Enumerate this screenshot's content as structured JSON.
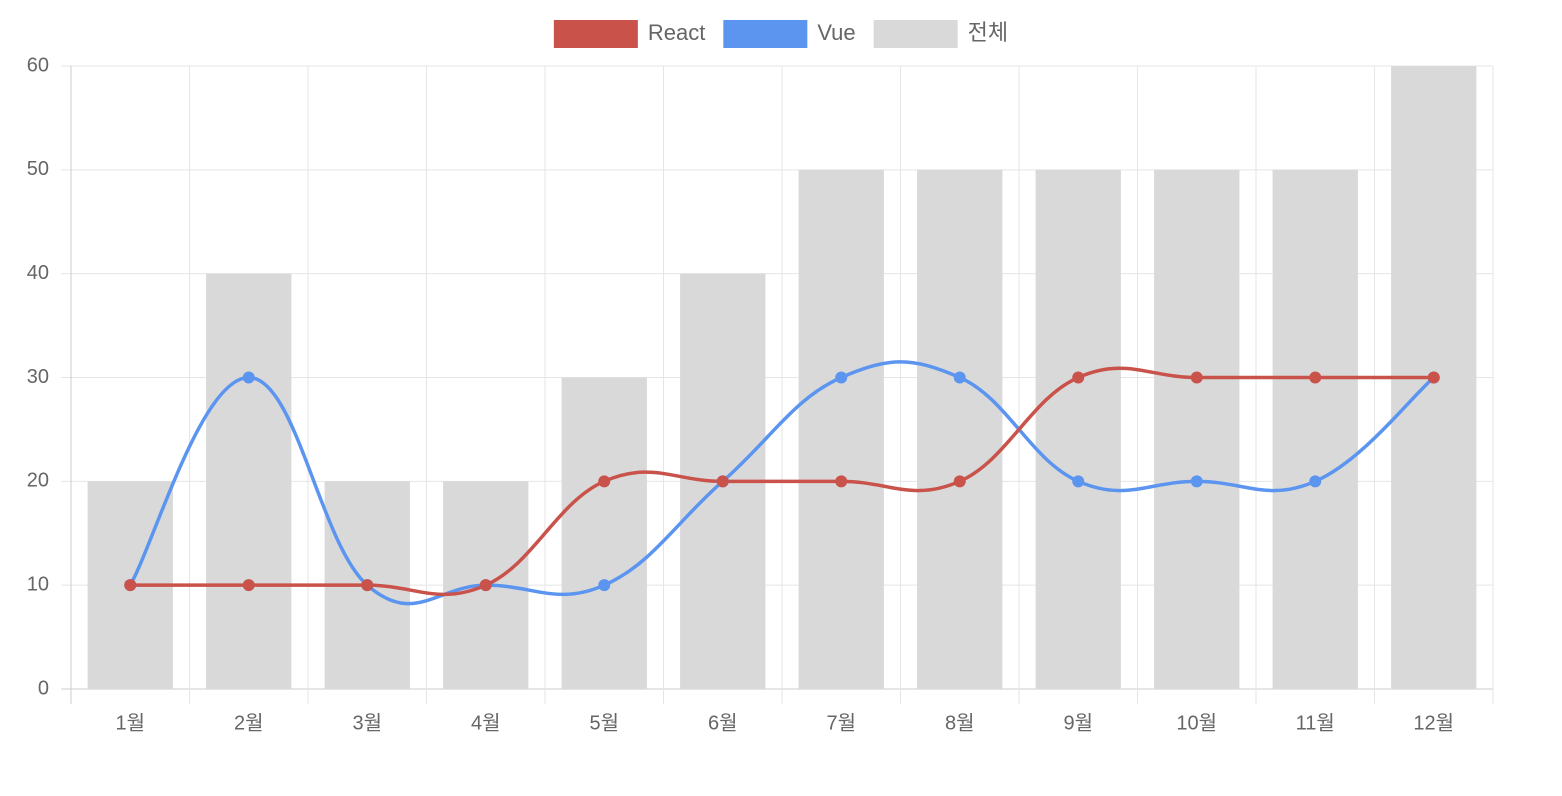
{
  "chart_data": {
    "type": "bar",
    "categories": [
      "1월",
      "2월",
      "3월",
      "4월",
      "5월",
      "6월",
      "7월",
      "8월",
      "9월",
      "10월",
      "11월",
      "12월"
    ],
    "series": [
      {
        "name": "React",
        "type": "line",
        "color": "#c9524a",
        "values": [
          10,
          10,
          10,
          10,
          20,
          20,
          20,
          20,
          30,
          30,
          30,
          30
        ]
      },
      {
        "name": "Vue",
        "type": "line",
        "color": "#5b95f0",
        "values": [
          10,
          30,
          10,
          10,
          10,
          20,
          30,
          30,
          20,
          20,
          20,
          30
        ]
      },
      {
        "name": "전체",
        "type": "bar",
        "color": "#d9d9d9",
        "values": [
          20,
          40,
          20,
          20,
          30,
          40,
          50,
          50,
          50,
          50,
          50,
          60
        ]
      }
    ],
    "y_ticks": [
      0,
      10,
      20,
      30,
      40,
      50,
      60
    ],
    "ylim": [
      0,
      60
    ],
    "grid": true,
    "legend_position": "top-center",
    "title": "",
    "xlabel": "",
    "ylabel": ""
  }
}
